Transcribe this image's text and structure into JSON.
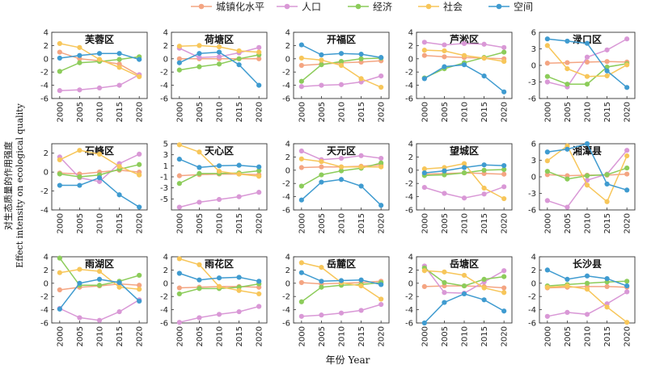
{
  "chart_data": {
    "type": "line",
    "x": [
      2000,
      2005,
      2010,
      2015,
      2020
    ],
    "xlabel": "年份 Year",
    "ylabel_cn": "对生态质量的作用强度",
    "ylabel_en": "Effect intensity  on ecological quality",
    "legend_placement": "top",
    "grid": false,
    "series_meta": [
      {
        "key": "urban",
        "name": "城镇化水平",
        "color": "#f4a582"
      },
      {
        "key": "pop",
        "name": "人口",
        "color": "#d998d6"
      },
      {
        "key": "econ",
        "name": "经济",
        "color": "#8ccc5a"
      },
      {
        "key": "soc",
        "name": "社会",
        "color": "#f7c65a"
      },
      {
        "key": "space",
        "name": "空间",
        "color": "#3f9bd0"
      }
    ],
    "panels": [
      {
        "title": "芙蓉区",
        "ylim": [
          -6,
          4
        ],
        "yticks": [
          -6,
          -4,
          -2,
          0,
          2,
          4
        ],
        "series": {
          "urban": [
            1.0,
            0.0,
            -0.3,
            -0.8,
            -2.5
          ],
          "pop": [
            -4.8,
            -4.7,
            -4.4,
            -4.0,
            -2.4
          ],
          "econ": [
            -1.9,
            -0.6,
            -0.4,
            -0.1,
            0.3
          ],
          "soc": [
            2.3,
            1.7,
            -0.1,
            -1.3,
            -2.7
          ],
          "space": [
            0.1,
            0.5,
            0.8,
            0.8,
            -0.1
          ]
        }
      },
      {
        "title": "荷塘区",
        "ylim": [
          -6,
          4
        ],
        "yticks": [
          -6,
          -4,
          -2,
          0,
          2,
          4
        ],
        "series": {
          "urban": [
            0.0,
            0.0,
            0.0,
            0.0,
            0.0
          ],
          "pop": [
            1.6,
            0.2,
            0.3,
            0.9,
            1.7
          ],
          "econ": [
            -1.7,
            -1.2,
            -0.8,
            0.0,
            0.6
          ],
          "soc": [
            1.9,
            2.0,
            1.8,
            1.2,
            1.0
          ],
          "space": [
            -0.6,
            0.8,
            1.0,
            -0.9,
            -4.0
          ]
        }
      },
      {
        "title": "开福区",
        "ylim": [
          -6,
          4
        ],
        "yticks": [
          -6,
          -4,
          -2,
          0,
          2,
          4
        ],
        "series": {
          "urban": [
            -1.0,
            -0.8,
            -0.6,
            -0.5,
            -0.3
          ],
          "pop": [
            -4.2,
            -4.0,
            -3.9,
            -3.5,
            -2.6
          ],
          "econ": [
            -3.4,
            -0.9,
            -0.4,
            0.0,
            0.1
          ],
          "soc": [
            0.1,
            -0.2,
            -1.0,
            -3.0,
            -4.3
          ],
          "space": [
            2.1,
            0.6,
            0.8,
            0.7,
            0.2
          ]
        }
      },
      {
        "title": "芦淞区",
        "ylim": [
          -6,
          4
        ],
        "yticks": [
          -6,
          -4,
          -2,
          0,
          2,
          4
        ],
        "series": {
          "urban": [
            0.5,
            0.3,
            0.2,
            0.1,
            0.0
          ],
          "pop": [
            2.5,
            2.1,
            2.3,
            2.2,
            1.7
          ],
          "econ": [
            -2.9,
            -1.5,
            -0.6,
            0.2,
            1.0
          ],
          "soc": [
            1.3,
            1.2,
            0.5,
            0.1,
            -0.4
          ],
          "space": [
            -3.0,
            -1.2,
            -0.9,
            -2.6,
            -5.0
          ]
        }
      },
      {
        "title": "渌口区",
        "ylim": [
          -6,
          6
        ],
        "yticks": [
          -6,
          -3,
          0,
          3,
          6
        ],
        "series": {
          "urban": [
            0.4,
            0.5,
            0.6,
            0.7,
            0.6
          ],
          "pop": [
            -3.0,
            -3.9,
            1.5,
            2.8,
            4.8
          ],
          "econ": [
            -2.0,
            -3.4,
            -3.4,
            -0.3,
            0.3
          ],
          "soc": [
            3.6,
            -0.6,
            -2.0,
            -1.9,
            0.1
          ],
          "space": [
            4.8,
            4.4,
            4.0,
            -1.0,
            -4.0
          ]
        }
      },
      {
        "title": "石峰区",
        "ylim": [
          -4,
          3
        ],
        "yticks": [
          -4,
          -2,
          0,
          2
        ],
        "series": {
          "urban": [
            -0.1,
            -0.2,
            0.0,
            0.2,
            0.0
          ],
          "pop": [
            1.6,
            -0.6,
            -1.0,
            0.9,
            1.9
          ],
          "econ": [
            -0.2,
            -0.5,
            -0.3,
            0.3,
            0.8
          ],
          "soc": [
            1.3,
            2.3,
            1.9,
            0.6,
            -0.3
          ],
          "space": [
            -1.4,
            -1.4,
            -0.6,
            -2.4,
            -3.7
          ]
        }
      },
      {
        "title": "天心区",
        "ylim": [
          -7,
          5
        ],
        "yticks": [
          -5,
          -3,
          -1,
          1,
          3,
          5
        ],
        "series": {
          "urban": [
            -0.8,
            -0.6,
            -0.5,
            -0.5,
            -0.6
          ],
          "pop": [
            -6.5,
            -5.6,
            -5.1,
            -4.6,
            -3.8
          ],
          "econ": [
            -2.2,
            -0.4,
            -0.4,
            -0.3,
            0.1
          ],
          "soc": [
            4.8,
            3.5,
            0.0,
            -0.5,
            -0.9
          ],
          "space": [
            2.2,
            0.7,
            1.0,
            1.1,
            0.8
          ]
        }
      },
      {
        "title": "天元区",
        "ylim": [
          -6,
          4
        ],
        "yticks": [
          -6,
          -4,
          -2,
          0,
          2,
          4
        ],
        "series": {
          "urban": [
            0.4,
            0.5,
            0.5,
            0.6,
            0.8
          ],
          "pop": [
            2.9,
            1.6,
            1.8,
            2.2,
            1.8
          ],
          "econ": [
            -2.4,
            -0.7,
            -0.1,
            0.3,
            1.1
          ],
          "soc": [
            1.7,
            1.3,
            0.5,
            0.5,
            0.5
          ],
          "space": [
            -4.5,
            -1.8,
            -1.4,
            -2.4,
            -5.3
          ]
        }
      },
      {
        "title": "望城区",
        "ylim": [
          -6,
          4
        ],
        "yticks": [
          -6,
          -4,
          -2,
          0,
          2,
          4
        ],
        "series": {
          "urban": [
            -0.6,
            -0.5,
            -0.4,
            -0.5,
            -0.6
          ],
          "pop": [
            -2.6,
            -3.5,
            -4.2,
            -3.6,
            -2.5
          ],
          "econ": [
            -0.8,
            -0.7,
            -0.4,
            0.0,
            0.1
          ],
          "soc": [
            0.2,
            0.4,
            1.0,
            -2.7,
            -4.3
          ],
          "space": [
            -0.4,
            -0.1,
            0.4,
            0.8,
            0.7
          ]
        }
      },
      {
        "title": "湘潭县",
        "ylim": [
          -6,
          6
        ],
        "yticks": [
          -6,
          -3,
          0,
          3,
          6
        ],
        "series": {
          "urban": [
            0.4,
            0.2,
            0.3,
            0.3,
            0.5
          ],
          "pop": [
            -4.3,
            -5.5,
            -0.6,
            0.5,
            4.8
          ],
          "econ": [
            1.0,
            -0.4,
            0.2,
            0.4,
            1.6
          ],
          "soc": [
            2.9,
            5.6,
            -1.5,
            -4.5,
            3.8
          ],
          "space": [
            4.5,
            5.0,
            6.0,
            -1.3,
            -2.4
          ]
        }
      },
      {
        "title": "雨湖区",
        "ylim": [
          -6,
          4
        ],
        "yticks": [
          -6,
          -4,
          -2,
          0,
          2,
          4
        ],
        "series": {
          "urban": [
            -1.0,
            -0.6,
            -0.4,
            -0.1,
            -0.3
          ],
          "pop": [
            -3.8,
            -5.2,
            -5.6,
            -4.3,
            -2.5
          ],
          "econ": [
            3.8,
            -0.3,
            -0.3,
            0.3,
            1.2
          ],
          "soc": [
            1.6,
            2.1,
            1.8,
            -0.6,
            -0.9
          ],
          "space": [
            -3.9,
            0.0,
            0.6,
            0.1,
            -2.7
          ]
        }
      },
      {
        "title": "雨花区",
        "ylim": [
          -6,
          4
        ],
        "yticks": [
          -6,
          -4,
          -2,
          0,
          2,
          4
        ],
        "series": {
          "urban": [
            -0.7,
            -0.6,
            -0.5,
            -0.5,
            -0.6
          ],
          "pop": [
            -5.9,
            -5.2,
            -4.7,
            -4.3,
            -3.5
          ],
          "econ": [
            -1.6,
            -0.8,
            -0.8,
            -0.6,
            -0.1
          ],
          "soc": [
            3.7,
            2.8,
            -0.5,
            -1.1,
            -1.6
          ],
          "space": [
            1.5,
            0.5,
            0.8,
            0.9,
            0.3
          ]
        }
      },
      {
        "title": "岳麓区",
        "ylim": [
          -6,
          4
        ],
        "yticks": [
          -6,
          -4,
          -2,
          0,
          2,
          4
        ],
        "series": {
          "urban": [
            0.1,
            -0.1,
            0.0,
            0.1,
            0.3
          ],
          "pop": [
            -5.0,
            -4.8,
            -4.5,
            -4.1,
            -3.2
          ],
          "econ": [
            -2.8,
            -0.6,
            -0.3,
            -0.2,
            0.1
          ],
          "soc": [
            3.1,
            2.4,
            0.1,
            -0.4,
            -2.4
          ],
          "space": [
            1.6,
            0.3,
            0.4,
            0.5,
            -0.2
          ]
        }
      },
      {
        "title": "岳塘区",
        "ylim": [
          -6,
          4
        ],
        "yticks": [
          -6,
          -4,
          -2,
          0,
          2,
          4
        ],
        "series": {
          "urban": [
            -0.5,
            -0.4,
            -0.4,
            -0.5,
            -0.7
          ],
          "pop": [
            2.6,
            -1.4,
            -1.5,
            0.2,
            1.9
          ],
          "econ": [
            2.3,
            0.1,
            -0.4,
            0.6,
            1.0
          ],
          "soc": [
            1.9,
            1.7,
            1.2,
            -0.7,
            -1.4
          ],
          "space": [
            -6.0,
            -2.9,
            -1.6,
            -2.5,
            -4.2
          ]
        }
      },
      {
        "title": "长沙县",
        "ylim": [
          -6,
          4
        ],
        "yticks": [
          -6,
          -4,
          -2,
          0,
          2,
          4
        ],
        "series": {
          "urban": [
            -0.7,
            -0.6,
            -0.5,
            -0.5,
            -0.6
          ],
          "pop": [
            -5.0,
            -4.4,
            -4.7,
            -3.1,
            -1.3
          ],
          "econ": [
            -0.4,
            -0.2,
            0.0,
            0.2,
            0.3
          ],
          "soc": [
            -0.6,
            -0.4,
            -0.9,
            -3.6,
            -5.9
          ],
          "space": [
            2.0,
            0.6,
            1.1,
            0.7,
            -0.4
          ]
        }
      }
    ]
  }
}
